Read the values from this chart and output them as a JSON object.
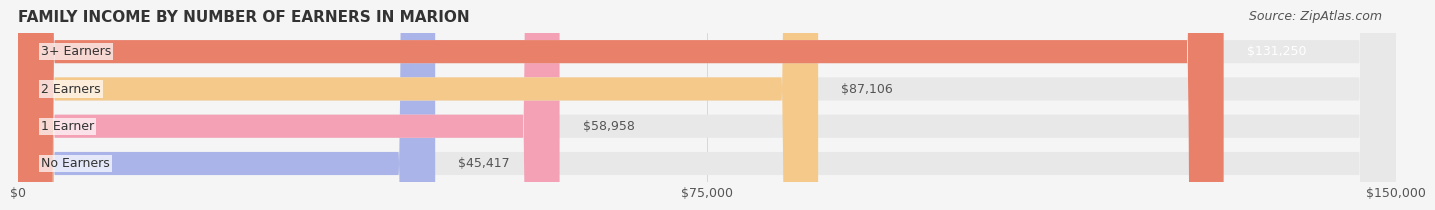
{
  "title": "FAMILY INCOME BY NUMBER OF EARNERS IN MARION",
  "source": "Source: ZipAtlas.com",
  "categories": [
    "No Earners",
    "1 Earner",
    "2 Earners",
    "3+ Earners"
  ],
  "values": [
    45417,
    58958,
    87106,
    131250
  ],
  "labels": [
    "$45,417",
    "$58,958",
    "$87,106",
    "$131,250"
  ],
  "bar_colors": [
    "#aab4e8",
    "#f4a0b5",
    "#f5c98a",
    "#e8806a"
  ],
  "bar_bg_color": "#e8e8e8",
  "label_colors": [
    "#555555",
    "#555555",
    "#555555",
    "#ffffff"
  ],
  "xlim": [
    0,
    150000
  ],
  "xticks": [
    0,
    75000,
    150000
  ],
  "xtick_labels": [
    "$0",
    "$75,000",
    "$150,000"
  ],
  "title_fontsize": 11,
  "source_fontsize": 9,
  "tick_fontsize": 9,
  "label_fontsize": 9,
  "cat_fontsize": 9,
  "background_color": "#f5f5f5",
  "bar_bg_alpha": 1.0
}
